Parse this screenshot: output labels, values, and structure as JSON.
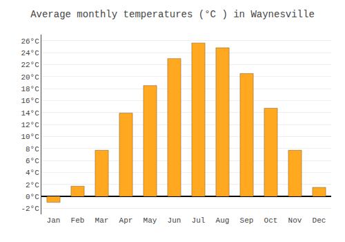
{
  "chart_data": {
    "type": "bar",
    "title": "Average monthly temperatures (°C ) in Waynesville",
    "categories": [
      "Jan",
      "Feb",
      "Mar",
      "Apr",
      "May",
      "Jun",
      "Jul",
      "Aug",
      "Sep",
      "Oct",
      "Nov",
      "Dec"
    ],
    "values": [
      -1.0,
      1.7,
      7.7,
      13.9,
      18.5,
      23.0,
      25.6,
      24.8,
      20.5,
      14.7,
      7.7,
      1.5
    ],
    "color": "#FFA820",
    "ylim": [
      -3,
      27
    ],
    "yticks": [
      {
        "value": -2,
        "label": "-2°C"
      },
      {
        "value": 0,
        "label": "0°C"
      },
      {
        "value": 2,
        "label": "2°C"
      },
      {
        "value": 4,
        "label": "4°C"
      },
      {
        "value": 6,
        "label": "6°C"
      },
      {
        "value": 8,
        "label": "8°C"
      },
      {
        "value": 10,
        "label": "10°C"
      },
      {
        "value": 12,
        "label": "12°C"
      },
      {
        "value": 14,
        "label": "14°C"
      },
      {
        "value": 16,
        "label": "16°C"
      },
      {
        "value": 18,
        "label": "18°C"
      },
      {
        "value": 20,
        "label": "20°C"
      },
      {
        "value": 22,
        "label": "22°C"
      },
      {
        "value": 24,
        "label": "24°C"
      },
      {
        "value": 26,
        "label": "26°C"
      }
    ],
    "grid": true
  }
}
